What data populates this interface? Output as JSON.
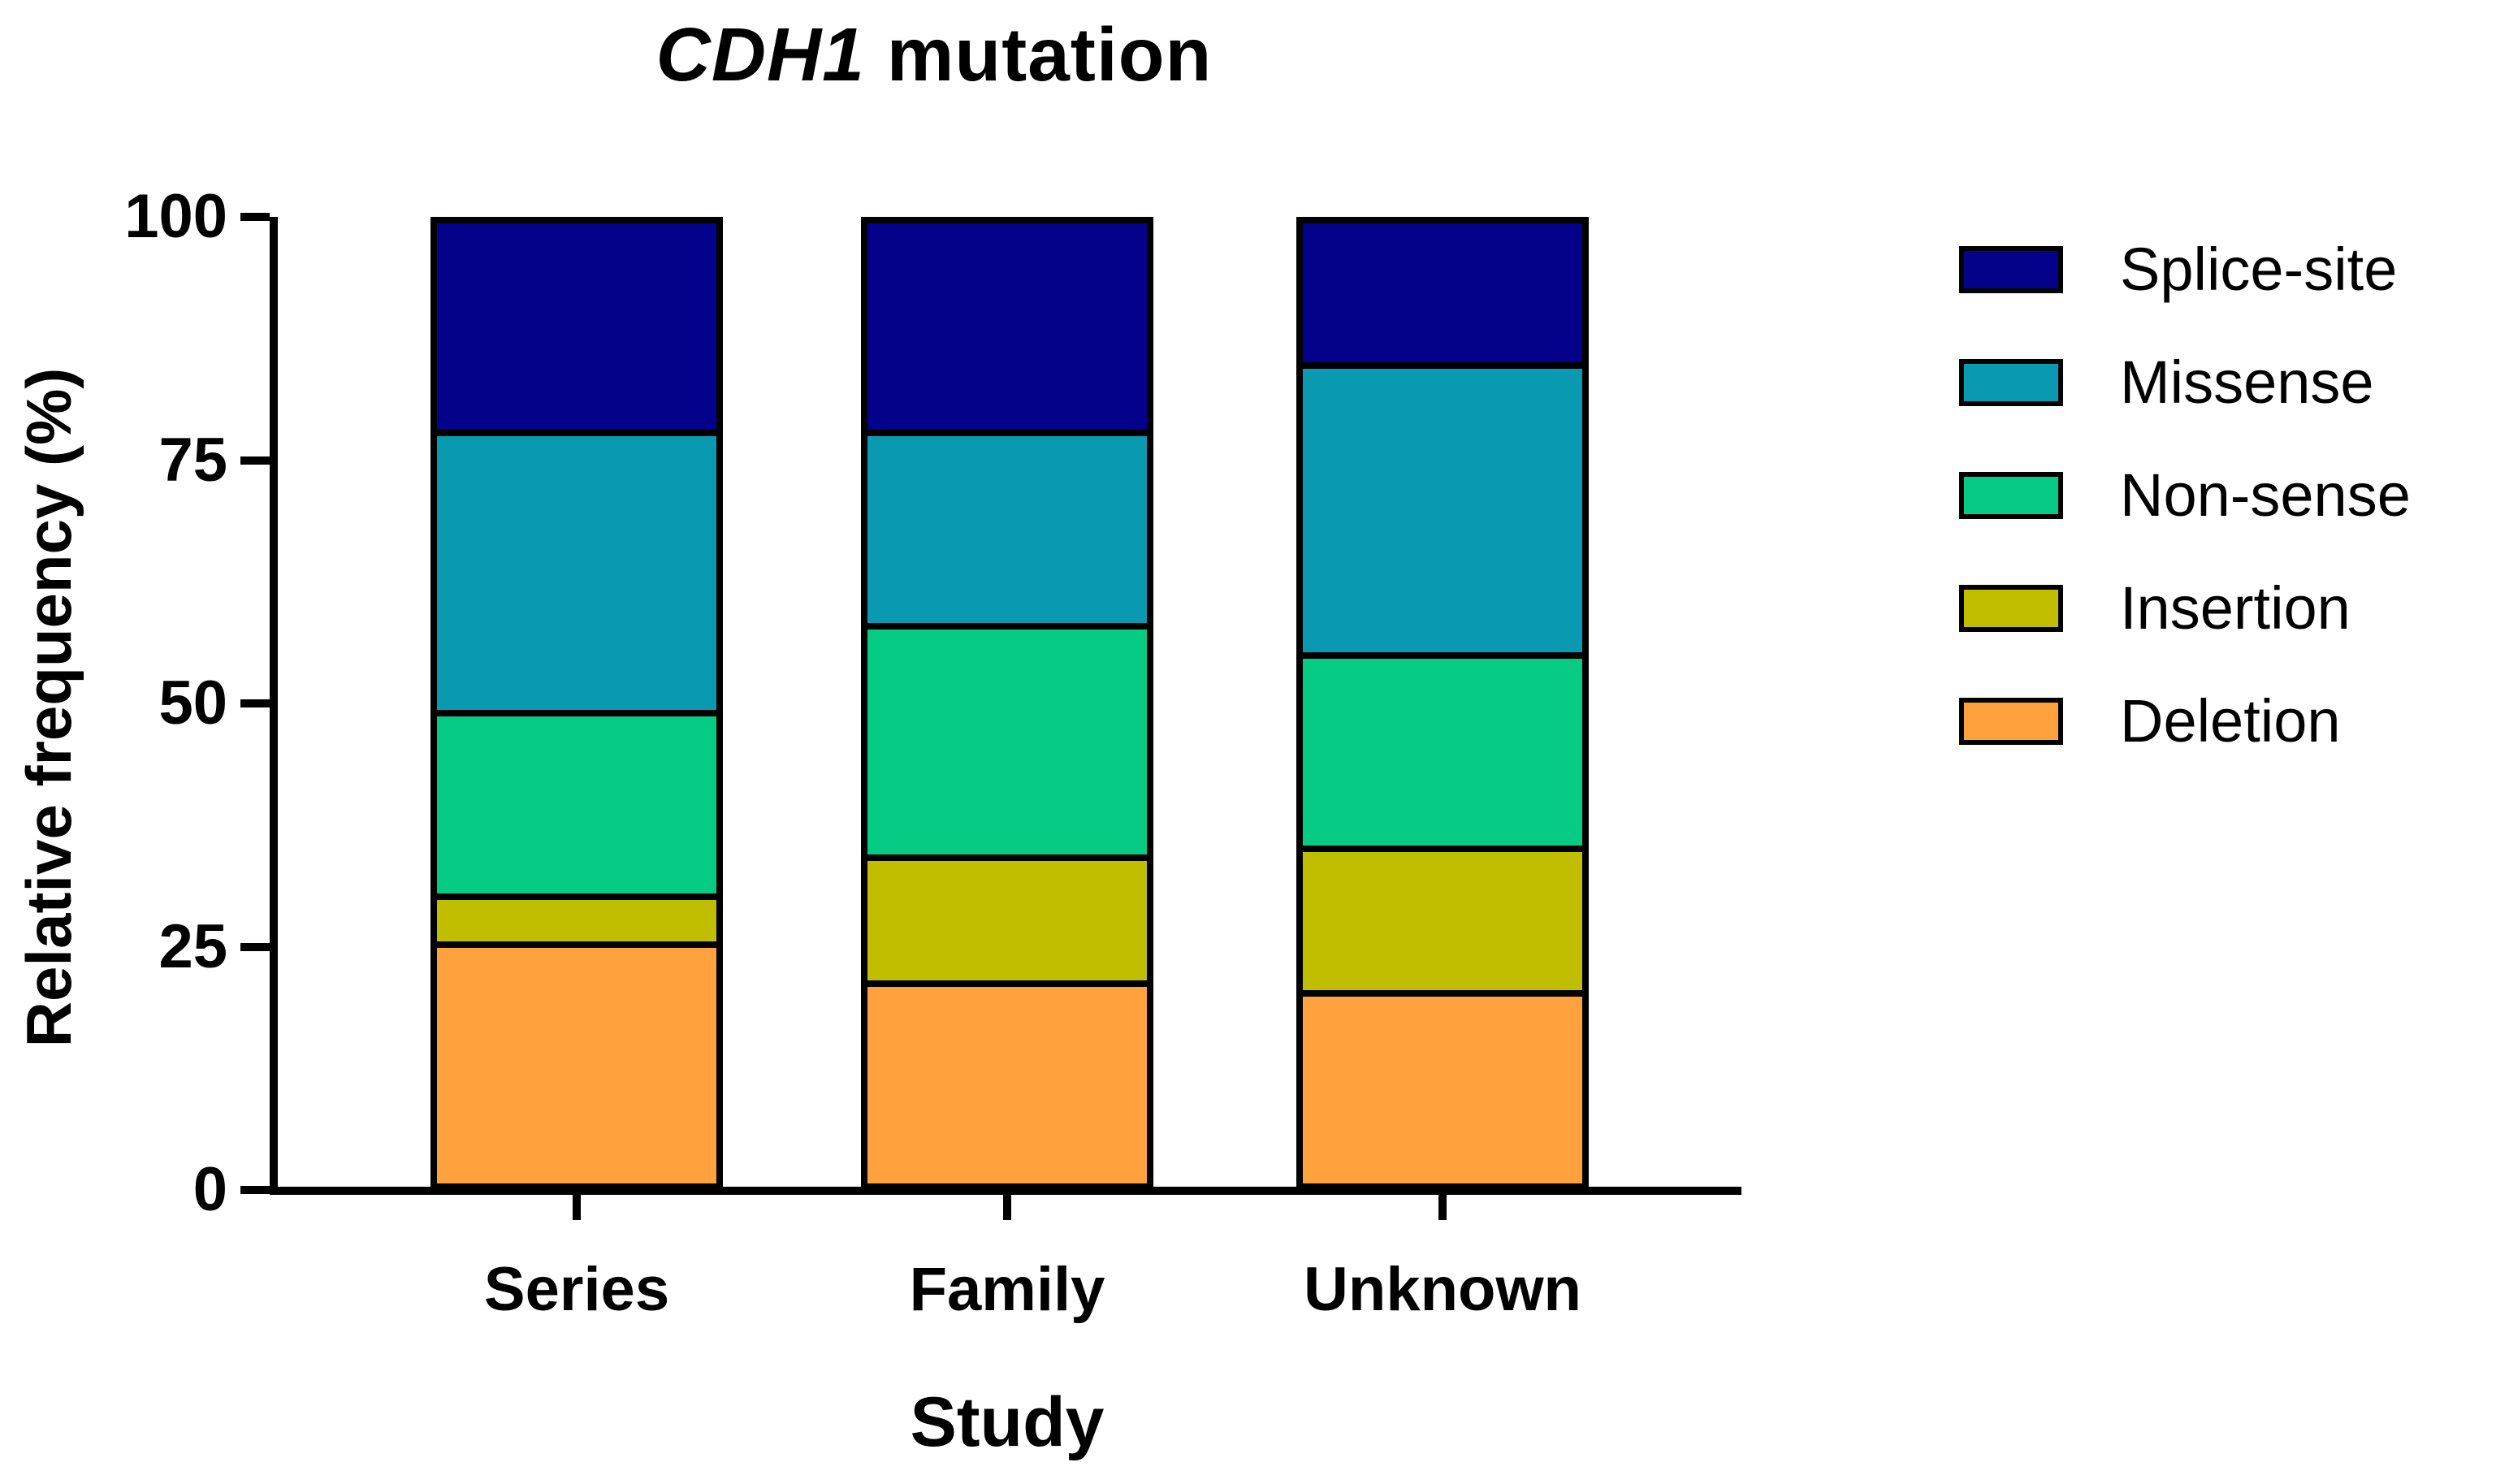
{
  "chart_data": {
    "type": "bar",
    "stacked": true,
    "title_gene": "CDH1",
    "title_rest": " mutation",
    "xlabel": "Study",
    "ylabel": "Relative frequency (%)",
    "categories": [
      "Series",
      "Family",
      "Unknown"
    ],
    "series": [
      {
        "name": "Splice-site",
        "color": "#04028B",
        "values": [
          22,
          22,
          15
        ]
      },
      {
        "name": "Missense",
        "color": "#0999B1",
        "values": [
          29,
          20,
          30
        ]
      },
      {
        "name": "Non-sense",
        "color": "#05CB85",
        "values": [
          19,
          24,
          20
        ]
      },
      {
        "name": "Insertion",
        "color": "#C1BE00",
        "values": [
          5,
          13,
          15
        ]
      },
      {
        "name": "Deletion",
        "color": "#FFA23E",
        "values": [
          25,
          21,
          20
        ]
      }
    ],
    "ylim": [
      0,
      100
    ],
    "yticks": [
      0,
      25,
      50,
      75,
      100
    ],
    "legend_position": "right",
    "grid": false,
    "axis_color": "#000000",
    "background_color": "#FFFFFF"
  }
}
